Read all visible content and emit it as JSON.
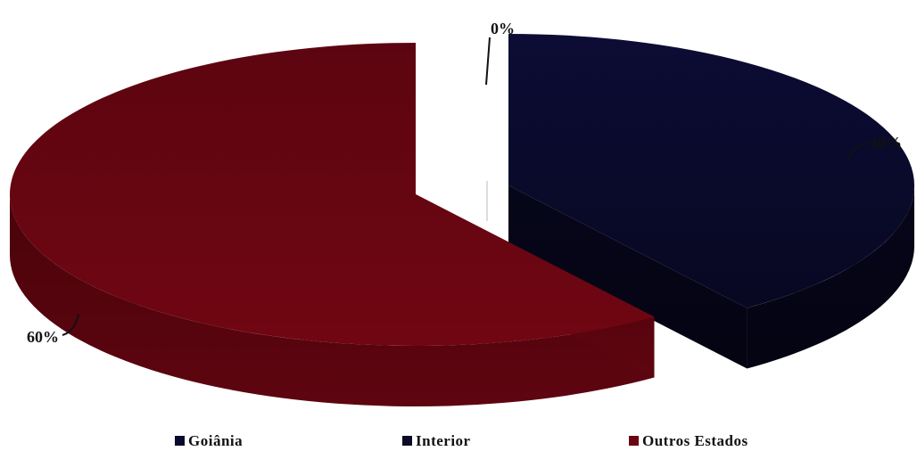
{
  "chart_data": {
    "type": "pie",
    "categories": [
      "Goiânia",
      "Interior",
      "Outros Estados"
    ],
    "values": [
      0,
      40,
      60
    ],
    "labels": [
      "0%",
      "40%",
      "60%"
    ],
    "colors": [
      "#0a0a2e",
      "#0b0b25",
      "#6b0610"
    ],
    "legend_position": "bottom",
    "three_d": true,
    "exploded": true
  }
}
